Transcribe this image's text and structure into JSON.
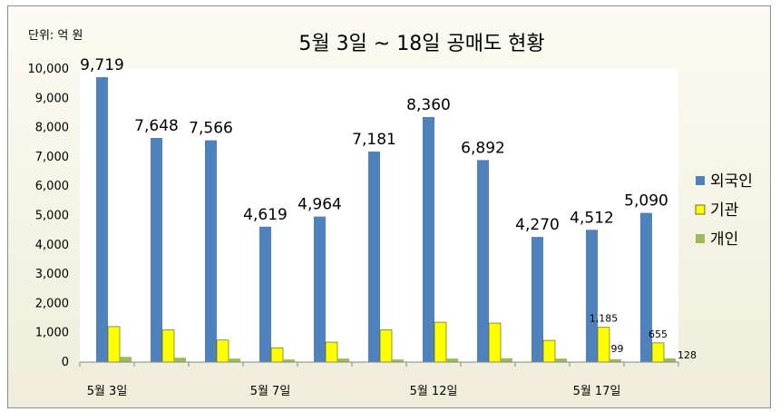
{
  "chart_data": {
    "type": "bar",
    "title": "5월 3일 ~ 18일  공매도 현황",
    "unit_label": "단위: 억 원",
    "categories": [
      "5월 3일",
      "",
      "",
      "5월 7일",
      "",
      "",
      "5월 12일",
      "",
      "",
      "5월 17일",
      ""
    ],
    "series": [
      {
        "name": "외국인",
        "color": "#4f81bd",
        "values": [
          9719,
          7648,
          7566,
          4619,
          4964,
          7181,
          8360,
          6892,
          4270,
          4512,
          5090
        ]
      },
      {
        "name": "기관",
        "color": "#ffff00",
        "values": [
          1210,
          1100,
          750,
          490,
          680,
          1100,
          1360,
          1330,
          740,
          1185,
          655
        ]
      },
      {
        "name": "개인",
        "color": "#9bbb59",
        "values": [
          180,
          150,
          120,
          90,
          120,
          90,
          120,
          130,
          120,
          99,
          128
        ]
      }
    ],
    "value_labels": {
      "외국인": [
        "9,719",
        "7,648",
        "7,566",
        "4,619",
        "4,964",
        "7,181",
        "8,360",
        "6,892",
        "4,270",
        "4,512",
        "5,090"
      ],
      "기관": {
        "9": "1,185",
        "10": "655"
      },
      "개인": {
        "9": "99",
        "10": "128"
      }
    },
    "yticks": [
      "0",
      "1,000",
      "2,000",
      "3,000",
      "4,000",
      "5,000",
      "6,000",
      "7,000",
      "8,000",
      "9,000",
      "10,000"
    ],
    "ylim": [
      0,
      10000
    ],
    "grid": false,
    "legend_position": "right"
  }
}
